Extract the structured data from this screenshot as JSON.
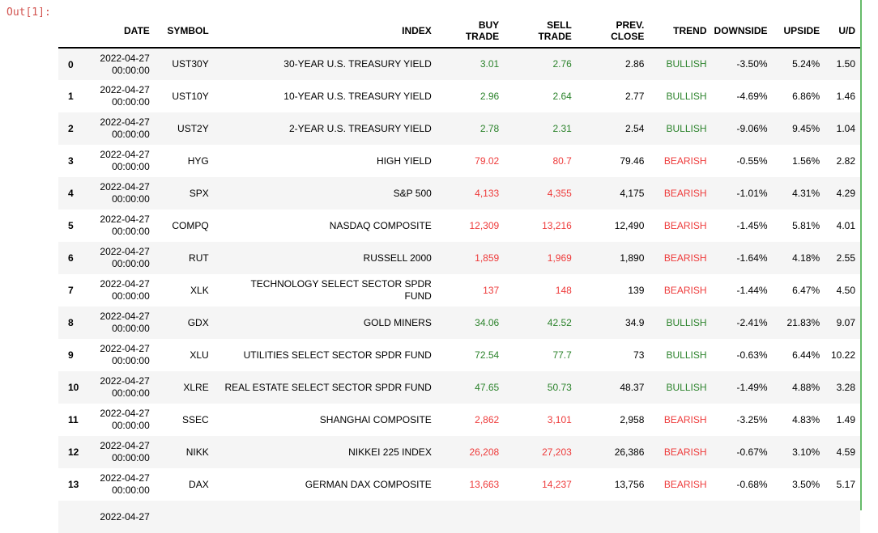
{
  "output_prompt": "Out[1]:",
  "colors": {
    "prompt": "#d25450",
    "bullish_green": "#2c832c",
    "bearish_red": "#ee3b3b",
    "row_stripe": "#f5f5f5",
    "cell_edit_border": "#66bb6a",
    "text": "#000000"
  },
  "table": {
    "headers": [
      "",
      "DATE",
      "SYMBOL",
      "INDEX",
      "BUY\nTRADE",
      "SELL\nTRADE",
      "PREV.\nCLOSE",
      "TREND",
      "DOWNSIDE",
      "UPSIDE",
      "U/D"
    ],
    "rows": [
      {
        "idx": "0",
        "date": "2022-04-27\n00:00:00",
        "symbol": "UST30Y",
        "index": "30-YEAR U.S. TREASURY YIELD",
        "buy": "3.01",
        "sell": "2.76",
        "prev_close": "2.86",
        "trend": "BULLISH",
        "downside": "-3.50%",
        "upside": "5.24%",
        "ud": "1.50"
      },
      {
        "idx": "1",
        "date": "2022-04-27\n00:00:00",
        "symbol": "UST10Y",
        "index": "10-YEAR U.S. TREASURY YIELD",
        "buy": "2.96",
        "sell": "2.64",
        "prev_close": "2.77",
        "trend": "BULLISH",
        "downside": "-4.69%",
        "upside": "6.86%",
        "ud": "1.46"
      },
      {
        "idx": "2",
        "date": "2022-04-27\n00:00:00",
        "symbol": "UST2Y",
        "index": "2-YEAR U.S. TREASURY YIELD",
        "buy": "2.78",
        "sell": "2.31",
        "prev_close": "2.54",
        "trend": "BULLISH",
        "downside": "-9.06%",
        "upside": "9.45%",
        "ud": "1.04"
      },
      {
        "idx": "3",
        "date": "2022-04-27\n00:00:00",
        "symbol": "HYG",
        "index": "HIGH YIELD",
        "buy": "79.02",
        "sell": "80.7",
        "prev_close": "79.46",
        "trend": "BEARISH",
        "downside": "-0.55%",
        "upside": "1.56%",
        "ud": "2.82"
      },
      {
        "idx": "4",
        "date": "2022-04-27\n00:00:00",
        "symbol": "SPX",
        "index": "S&P 500",
        "buy": "4,133",
        "sell": "4,355",
        "prev_close": "4,175",
        "trend": "BEARISH",
        "downside": "-1.01%",
        "upside": "4.31%",
        "ud": "4.29"
      },
      {
        "idx": "5",
        "date": "2022-04-27\n00:00:00",
        "symbol": "COMPQ",
        "index": "NASDAQ COMPOSITE",
        "buy": "12,309",
        "sell": "13,216",
        "prev_close": "12,490",
        "trend": "BEARISH",
        "downside": "-1.45%",
        "upside": "5.81%",
        "ud": "4.01"
      },
      {
        "idx": "6",
        "date": "2022-04-27\n00:00:00",
        "symbol": "RUT",
        "index": "RUSSELL 2000",
        "buy": "1,859",
        "sell": "1,969",
        "prev_close": "1,890",
        "trend": "BEARISH",
        "downside": "-1.64%",
        "upside": "4.18%",
        "ud": "2.55"
      },
      {
        "idx": "7",
        "date": "2022-04-27\n00:00:00",
        "symbol": "XLK",
        "index": "TECHNOLOGY SELECT SECTOR SPDR\nFUND",
        "buy": "137",
        "sell": "148",
        "prev_close": "139",
        "trend": "BEARISH",
        "downside": "-1.44%",
        "upside": "6.47%",
        "ud": "4.50"
      },
      {
        "idx": "8",
        "date": "2022-04-27\n00:00:00",
        "symbol": "GDX",
        "index": "GOLD MINERS",
        "buy": "34.06",
        "sell": "42.52",
        "prev_close": "34.9",
        "trend": "BULLISH",
        "downside": "-2.41%",
        "upside": "21.83%",
        "ud": "9.07"
      },
      {
        "idx": "9",
        "date": "2022-04-27\n00:00:00",
        "symbol": "XLU",
        "index": "UTILITIES SELECT SECTOR SPDR FUND",
        "buy": "72.54",
        "sell": "77.7",
        "prev_close": "73",
        "trend": "BULLISH",
        "downside": "-0.63%",
        "upside": "6.44%",
        "ud": "10.22"
      },
      {
        "idx": "10",
        "date": "2022-04-27\n00:00:00",
        "symbol": "XLRE",
        "index": "REAL ESTATE SELECT SECTOR SPDR FUND",
        "buy": "47.65",
        "sell": "50.73",
        "prev_close": "48.37",
        "trend": "BULLISH",
        "downside": "-1.49%",
        "upside": "4.88%",
        "ud": "3.28"
      },
      {
        "idx": "11",
        "date": "2022-04-27\n00:00:00",
        "symbol": "SSEC",
        "index": "SHANGHAI COMPOSITE",
        "buy": "2,862",
        "sell": "3,101",
        "prev_close": "2,958",
        "trend": "BEARISH",
        "downside": "-3.25%",
        "upside": "4.83%",
        "ud": "1.49"
      },
      {
        "idx": "12",
        "date": "2022-04-27\n00:00:00",
        "symbol": "NIKK",
        "index": "NIKKEI 225 INDEX",
        "buy": "26,208",
        "sell": "27,203",
        "prev_close": "26,386",
        "trend": "BEARISH",
        "downside": "-0.67%",
        "upside": "3.10%",
        "ud": "4.59"
      },
      {
        "idx": "13",
        "date": "2022-04-27\n00:00:00",
        "symbol": "DAX",
        "index": "GERMAN DAX COMPOSITE",
        "buy": "13,663",
        "sell": "14,237",
        "prev_close": "13,756",
        "trend": "BEARISH",
        "downside": "-0.68%",
        "upside": "3.50%",
        "ud": "5.17"
      },
      {
        "idx": "",
        "date": "2022-04-27",
        "symbol": "",
        "index": "",
        "buy": "",
        "sell": "",
        "prev_close": "",
        "trend": "",
        "downside": "",
        "upside": "",
        "ud": ""
      }
    ]
  }
}
